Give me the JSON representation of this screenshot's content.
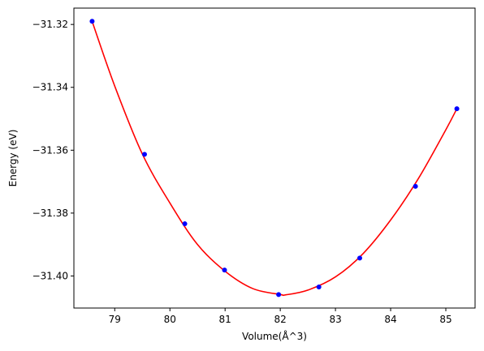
{
  "chart_data": {
    "type": "scatter",
    "title": "",
    "xlabel": "Volume(Å^3)",
    "ylabel": "Energy (eV)",
    "xlim": [
      78.26,
      85.53
    ],
    "ylim": [
      -31.4102,
      -31.3148
    ],
    "x_ticks": [
      79,
      80,
      81,
      82,
      83,
      84,
      85
    ],
    "y_ticks": [
      -31.32,
      -31.34,
      -31.36,
      -31.38,
      -31.4
    ],
    "x_tick_labels": [
      "79",
      "80",
      "81",
      "82",
      "83",
      "84",
      "85"
    ],
    "y_tick_labels": [
      "−31.32",
      "−31.34",
      "−31.36",
      "−31.38",
      "−31.40"
    ],
    "grid": false,
    "series": [
      {
        "kind": "points",
        "color": "#0000ff",
        "x": [
          78.59,
          79.54,
          80.27,
          80.99,
          81.97,
          82.7,
          83.44,
          84.45,
          85.2
        ],
        "y": [
          -31.319,
          -31.3613,
          -31.3834,
          -31.3981,
          -31.4059,
          -31.4035,
          -31.3943,
          -31.3715,
          -31.3468
        ]
      },
      {
        "kind": "fit",
        "color": "#ff0000",
        "x": [
          78.59,
          79.0,
          79.5,
          80.0,
          80.5,
          81.0,
          81.5,
          82.0,
          82.1,
          82.5,
          83.0,
          83.5,
          84.0,
          84.5,
          85.0,
          85.2
        ],
        "y": [
          -31.319,
          -31.3396,
          -31.3612,
          -31.3768,
          -31.39,
          -31.3985,
          -31.404,
          -31.4059,
          -31.406,
          -31.4045,
          -31.4003,
          -31.3929,
          -31.3822,
          -31.3691,
          -31.3535,
          -31.3468
        ]
      }
    ]
  }
}
